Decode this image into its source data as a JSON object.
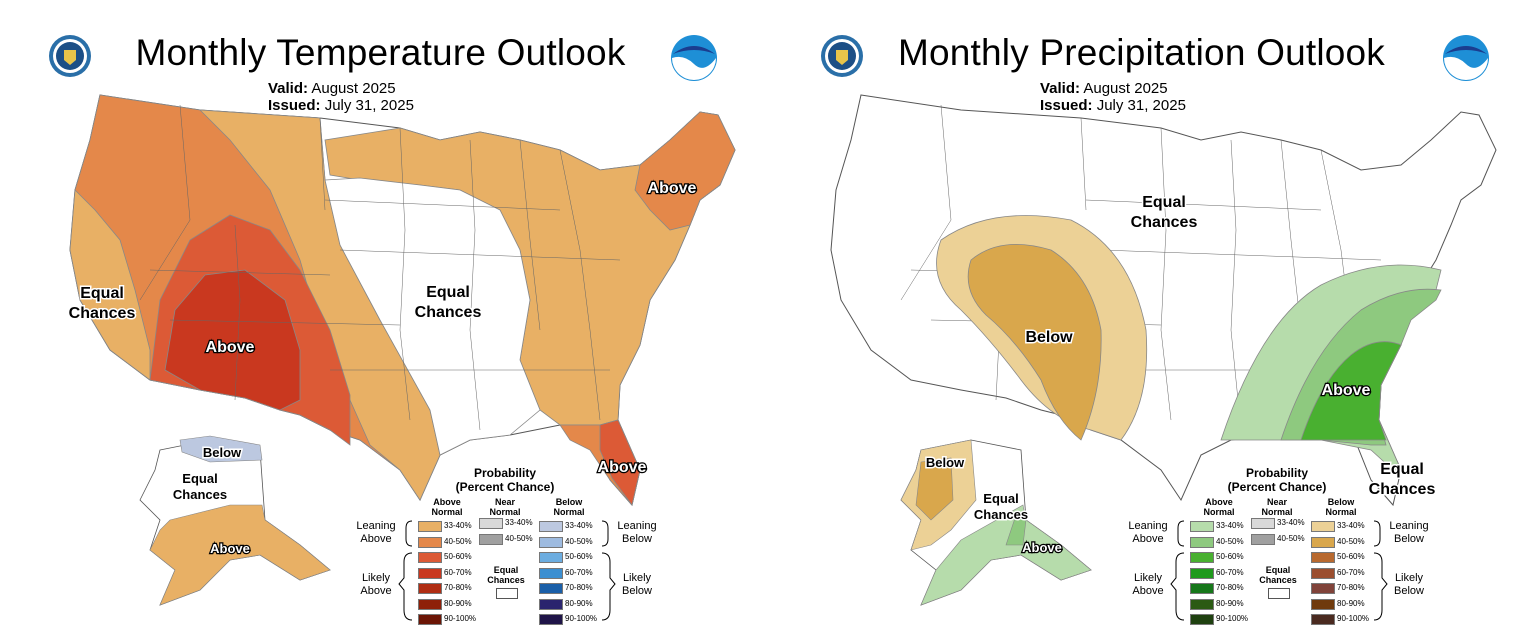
{
  "panels": [
    {
      "title": "Monthly Temperature Outlook",
      "valid_label": "Valid:",
      "valid_value": "August 2025",
      "issued_label": "Issued:",
      "issued_value": "July 31, 2025",
      "map_labels": [
        {
          "text": "Above"
        },
        {
          "text": "Equal"
        },
        {
          "text": "Chances"
        },
        {
          "text": "Above"
        },
        {
          "text": "Equal"
        },
        {
          "text": "Chances"
        },
        {
          "text": "Above"
        },
        {
          "text": "Below"
        },
        {
          "text": "Equal"
        },
        {
          "text": "Chances"
        },
        {
          "text": "Above"
        }
      ]
    },
    {
      "title": "Monthly Precipitation Outlook",
      "valid_label": "Valid:",
      "valid_value": "August 2025",
      "issued_label": "Issued:",
      "issued_value": "July 31, 2025",
      "map_labels": [
        {
          "text": "Equal"
        },
        {
          "text": "Chances"
        },
        {
          "text": "Below"
        },
        {
          "text": "Above"
        },
        {
          "text": "Equal"
        },
        {
          "text": "Chances"
        },
        {
          "text": "Below"
        },
        {
          "text": "Equal"
        },
        {
          "text": "Chances"
        },
        {
          "text": "Above"
        }
      ]
    }
  ],
  "legend": {
    "title_line1": "Probability",
    "title_line2": "(Percent Chance)",
    "col_above_1": "Above",
    "col_above_2": "Normal",
    "col_near_1": "Near",
    "col_near_2": "Normal",
    "col_below_1": "Below",
    "col_below_2": "Normal",
    "leaning_above_1": "Leaning",
    "leaning_above_2": "Above",
    "likely_above_1": "Likely",
    "likely_above_2": "Above",
    "leaning_below_1": "Leaning",
    "leaning_below_2": "Below",
    "likely_below_1": "Likely",
    "likely_below_2": "Below",
    "equal_1": "Equal",
    "equal_2": "Chances",
    "ranges": [
      "33-40%",
      "40-50%",
      "50-60%",
      "60-70%",
      "70-80%",
      "80-90%",
      "90-100%"
    ],
    "near_ranges": [
      "33-40%",
      "40-50%"
    ],
    "temp_above_colors": [
      "#e8b065",
      "#e4884a",
      "#dc5a36",
      "#c9381f",
      "#b02d13",
      "#8e2009",
      "#6b1505"
    ],
    "temp_below_colors": [
      "#bcc8e0",
      "#9ebbe0",
      "#6cade0",
      "#3b8fd1",
      "#1a5fa8",
      "#2a246e",
      "#1f1448"
    ],
    "precip_above_colors": [
      "#b6dcab",
      "#8ec97f",
      "#49b030",
      "#1f9a1c",
      "#16771a",
      "#2b5a14",
      "#1f4110"
    ],
    "precip_below_colors": [
      "#ecd196",
      "#d9a74c",
      "#b8692f",
      "#9b4e2f",
      "#80433a",
      "#6f3a0d",
      "#4a2a20"
    ],
    "near_colors": [
      "#d9d9d9",
      "#a0a0a0"
    ]
  }
}
